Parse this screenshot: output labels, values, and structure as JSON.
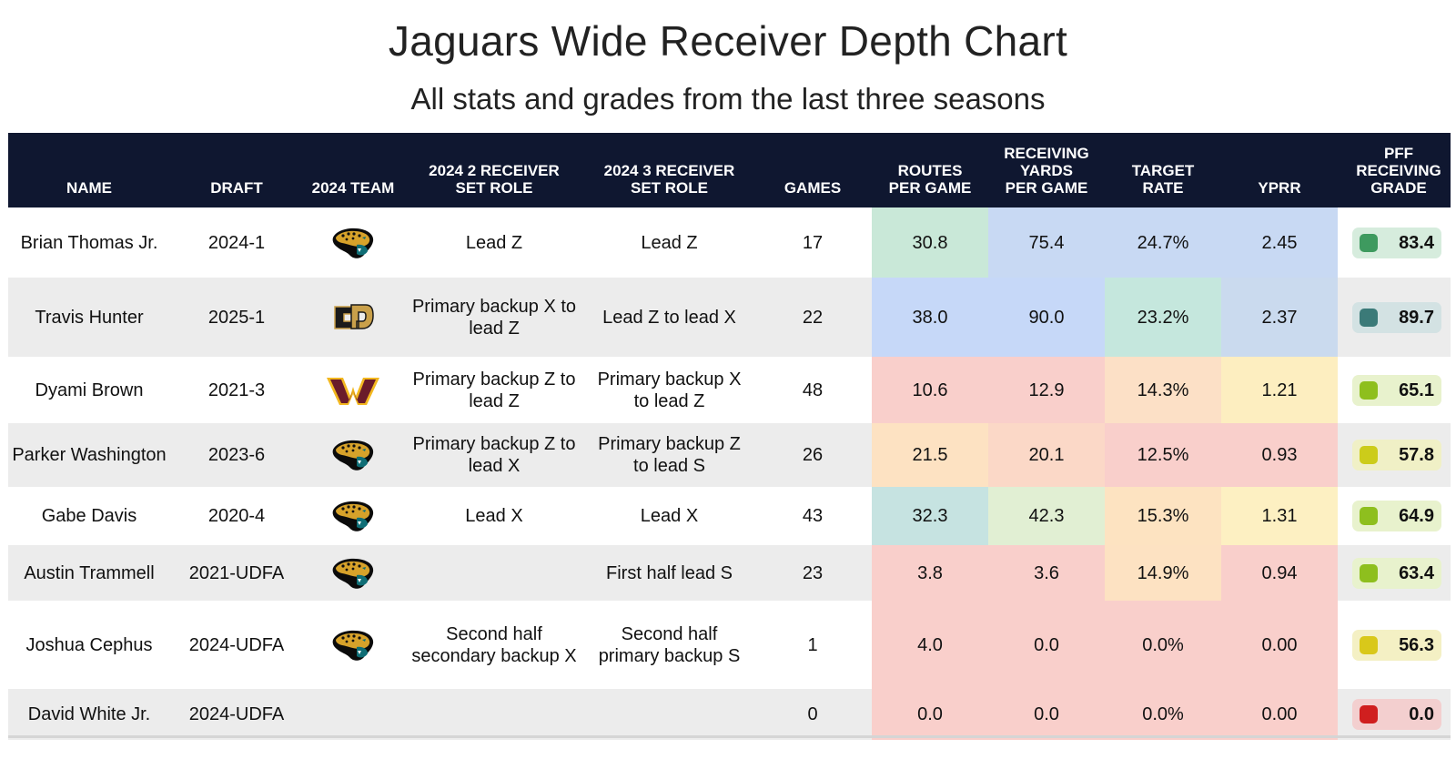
{
  "title": "Jaguars Wide Receiver Depth Chart",
  "subtitle": "All stats and grades from the last three seasons",
  "headers": {
    "name": "NAME",
    "draft": "DRAFT",
    "team": "2024 TEAM",
    "role2": "2024 2 RECEIVER\nSET ROLE",
    "role3": "2024 3 RECEIVER\nSET ROLE",
    "games": "GAMES",
    "routes": "ROUTES\nPER GAME",
    "yards": "RECEIVING\nYARDS\nPER GAME",
    "target_rate": "TARGET\nRATE",
    "yprr": "YPRR",
    "grade": "PFF\nRECEIVING\nGRADE"
  },
  "rows": [
    {
      "name": "Brian Thomas Jr.",
      "draft": "2024-1",
      "team_icon": "jaguars-logo-icon",
      "role2": "Lead Z",
      "role3": "Lead Z",
      "games": "17",
      "routes": "30.8",
      "yards": "75.4",
      "target_rate": "24.7%",
      "yprr": "2.45",
      "grade": "83.4",
      "colors": {
        "routes": "#c9e8d8",
        "yards": "#c8d9f3",
        "target_rate": "#c8d9f3",
        "yprr": "#c8d9f3",
        "grade_bg": "#d6ecdd",
        "grade_dot": "#3e9a5f"
      }
    },
    {
      "name": "Travis Hunter",
      "draft": "2025-1",
      "team_icon": "colorado-buffaloes-logo-icon",
      "role2": "Primary backup X to lead Z",
      "role3": "Lead Z to lead X",
      "games": "22",
      "routes": "38.0",
      "yards": "90.0",
      "target_rate": "23.2%",
      "yprr": "2.37",
      "grade": "89.7",
      "colors": {
        "routes": "#c6d8f8",
        "yards": "#c6d8f8",
        "target_rate": "#c5e7dd",
        "yprr": "#cadaee",
        "grade_bg": "#d3e2e3",
        "grade_dot": "#3b7a78"
      }
    },
    {
      "name": "Dyami Brown",
      "draft": "2021-3",
      "team_icon": "commanders-logo-icon",
      "role2": "Primary backup Z to lead Z",
      "role3": "Primary backup X to lead Z",
      "games": "48",
      "routes": "10.6",
      "yards": "12.9",
      "target_rate": "14.3%",
      "yprr": "1.21",
      "grade": "65.1",
      "colors": {
        "routes": "#f9cfcb",
        "yards": "#f9cfcb",
        "target_rate": "#fce0c6",
        "yprr": "#fdeec0",
        "grade_bg": "#e8f2cd",
        "grade_dot": "#8ebf1e"
      }
    },
    {
      "name": "Parker Washington",
      "draft": "2023-6",
      "team_icon": "jaguars-logo-icon",
      "role2": "Primary backup Z to lead X",
      "role3": "Primary backup Z to lead S",
      "games": "26",
      "routes": "21.5",
      "yards": "20.1",
      "target_rate": "12.5%",
      "yprr": "0.93",
      "grade": "57.8",
      "colors": {
        "routes": "#fde2c2",
        "yards": "#fbd8c7",
        "target_rate": "#f9cfcb",
        "yprr": "#f9cfcb",
        "grade_bg": "#f0f0c6",
        "grade_dot": "#cccc1a"
      }
    },
    {
      "name": "Gabe Davis",
      "draft": "2020-4",
      "team_icon": "jaguars-logo-icon",
      "role2": "Lead X",
      "role3": "Lead X",
      "games": "43",
      "routes": "32.3",
      "yards": "42.3",
      "target_rate": "15.3%",
      "yprr": "1.31",
      "grade": "64.9",
      "colors": {
        "routes": "#c6e3e1",
        "yards": "#e1efd3",
        "target_rate": "#fde3c1",
        "yprr": "#fdf0c2",
        "grade_bg": "#e8f2cd",
        "grade_dot": "#8ebf1e"
      }
    },
    {
      "name": "Austin Trammell",
      "draft": "2021-UDFA",
      "team_icon": "jaguars-logo-icon",
      "role2": "",
      "role3": "First half lead S",
      "games": "23",
      "routes": "3.8",
      "yards": "3.6",
      "target_rate": "14.9%",
      "yprr": "0.94",
      "grade": "63.4",
      "colors": {
        "routes": "#f9cfcb",
        "yards": "#f9cfcb",
        "target_rate": "#fde2c2",
        "yprr": "#f9cfcb",
        "grade_bg": "#e8f2cd",
        "grade_dot": "#8ebf1e"
      }
    },
    {
      "name": "Joshua Cephus",
      "draft": "2024-UDFA",
      "team_icon": "jaguars-logo-icon",
      "role2": "Second half secondary backup X",
      "role3": "Second half primary backup S",
      "games": "1",
      "routes": "4.0",
      "yards": "0.0",
      "target_rate": "0.0%",
      "yprr": "0.00",
      "grade": "56.3",
      "colors": {
        "routes": "#f9cfcb",
        "yards": "#f9cfcb",
        "target_rate": "#f9cfcb",
        "yprr": "#f9cfcb",
        "grade_bg": "#f4f0c4",
        "grade_dot": "#d9c81a"
      }
    },
    {
      "name": "David White Jr.",
      "draft": "2024-UDFA",
      "team_icon": "",
      "role2": "",
      "role3": "",
      "games": "0",
      "routes": "0.0",
      "yards": "0.0",
      "target_rate": "0.0%",
      "yprr": "0.00",
      "grade": "0.0",
      "colors": {
        "routes": "#f9cfcb",
        "yards": "#f9cfcb",
        "target_rate": "#f9cfcb",
        "yprr": "#f9cfcb",
        "grade_bg": "#f3cfcf",
        "grade_dot": "#d01f1f"
      }
    }
  ]
}
